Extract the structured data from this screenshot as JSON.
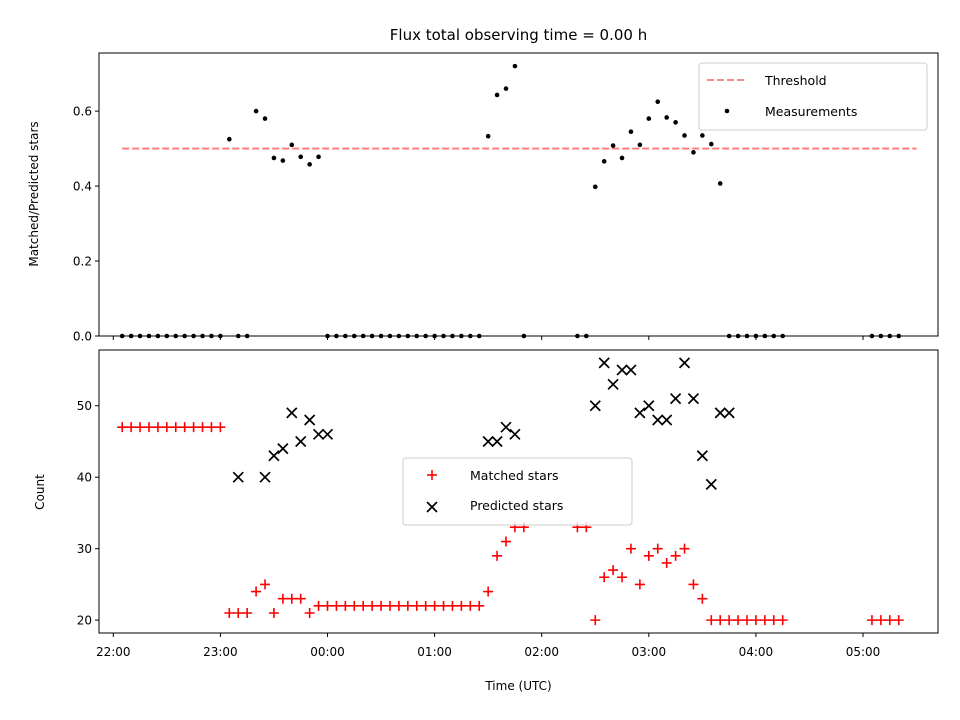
{
  "chart_data": [
    {
      "type": "scatter",
      "title": "Flux total observing time = 0.00 h",
      "ylabel": "Matched/Predicted stars",
      "xlabel": "",
      "ylim": [
        0,
        0.755
      ],
      "yticks": [
        "0.0",
        "0.2",
        "0.4",
        "0.6"
      ],
      "grid": false,
      "legend_position": "top-right",
      "series": [
        {
          "name": "Threshold",
          "style": "dashed-line",
          "color": "#ff7777",
          "x": [
            "22:05",
            "05:30"
          ],
          "y": [
            0.5,
            0.5
          ]
        },
        {
          "name": "Measurements",
          "style": "dot",
          "color": "#000000",
          "x": [
            "22:05",
            "22:10",
            "22:15",
            "22:20",
            "22:25",
            "22:30",
            "22:35",
            "22:40",
            "22:45",
            "22:50",
            "22:55",
            "23:00",
            "23:05",
            "23:10",
            "23:15",
            "23:20",
            "23:25",
            "23:30",
            "23:35",
            "23:40",
            "23:45",
            "23:50",
            "23:55",
            "00:00",
            "00:05",
            "00:10",
            "00:15",
            "00:20",
            "00:25",
            "00:30",
            "00:35",
            "00:40",
            "00:45",
            "00:50",
            "00:55",
            "01:00",
            "01:05",
            "01:10",
            "01:15",
            "01:20",
            "01:25",
            "01:30",
            "01:35",
            "01:40",
            "01:45",
            "01:50",
            "02:20",
            "02:25",
            "02:30",
            "02:35",
            "02:40",
            "02:45",
            "02:50",
            "02:55",
            "03:00",
            "03:05",
            "03:10",
            "03:15",
            "03:20",
            "03:25",
            "03:30",
            "03:35",
            "03:40",
            "03:45",
            "03:50",
            "03:55",
            "04:00",
            "04:05",
            "04:10",
            "04:15",
            "05:05",
            "05:10",
            "05:15",
            "05:20"
          ],
          "y": [
            0,
            0,
            0,
            0,
            0,
            0,
            0,
            0,
            0,
            0,
            0,
            0,
            0.525,
            0,
            0,
            0.6,
            0.58,
            0.475,
            0.468,
            0.51,
            0.478,
            0.458,
            0.478,
            0,
            0,
            0,
            0,
            0,
            0,
            0,
            0,
            0,
            0,
            0,
            0,
            0,
            0,
            0,
            0,
            0,
            0,
            0.533,
            0.643,
            0.66,
            0.72,
            0,
            0,
            0,
            0.398,
            0.466,
            0.508,
            0.475,
            0.545,
            0.51,
            0.58,
            0.625,
            0.583,
            0.57,
            0.535,
            0.49,
            0.535,
            0.512,
            0.407,
            0,
            0,
            0,
            0,
            0,
            0,
            0,
            0,
            0,
            0,
            0
          ]
        }
      ]
    },
    {
      "type": "scatter",
      "title": "",
      "ylabel": "Count",
      "xlabel": "Time (UTC)",
      "ylim": [
        18.2,
        57.8
      ],
      "yticks": [
        "20",
        "30",
        "40",
        "50"
      ],
      "xlim": [
        "21:52",
        "05:42"
      ],
      "xticks": [
        "22:00",
        "23:00",
        "00:00",
        "01:00",
        "02:00",
        "03:00",
        "04:00",
        "05:00"
      ],
      "grid": false,
      "legend_position": "center",
      "series": [
        {
          "name": "Matched stars",
          "marker": "plus",
          "color": "#ff0000",
          "x": [
            "22:05",
            "22:10",
            "22:15",
            "22:20",
            "22:25",
            "22:30",
            "22:35",
            "22:40",
            "22:45",
            "22:50",
            "22:55",
            "23:00",
            "23:05",
            "23:10",
            "23:15",
            "23:20",
            "23:25",
            "23:30",
            "23:35",
            "23:40",
            "23:45",
            "23:50",
            "23:55",
            "00:00",
            "00:05",
            "00:10",
            "00:15",
            "00:20",
            "00:25",
            "00:30",
            "00:35",
            "00:40",
            "00:45",
            "00:50",
            "00:55",
            "01:00",
            "01:05",
            "01:10",
            "01:15",
            "01:20",
            "01:25",
            "01:30",
            "01:35",
            "01:40",
            "01:45",
            "01:50",
            "02:20",
            "02:25",
            "02:30",
            "02:35",
            "02:40",
            "02:45",
            "02:50",
            "02:55",
            "03:00",
            "03:05",
            "03:10",
            "03:15",
            "03:20",
            "03:25",
            "03:30",
            "03:35",
            "03:40",
            "03:45",
            "03:50",
            "03:55",
            "04:00",
            "04:05",
            "04:10",
            "04:15",
            "05:05",
            "05:10",
            "05:15",
            "05:20"
          ],
          "y": [
            47,
            47,
            47,
            47,
            47,
            47,
            47,
            47,
            47,
            47,
            47,
            47,
            21,
            21,
            21,
            24,
            25,
            21,
            23,
            23,
            23,
            21,
            22,
            22,
            22,
            22,
            22,
            22,
            22,
            22,
            22,
            22,
            22,
            22,
            22,
            22,
            22,
            22,
            22,
            22,
            22,
            24,
            29,
            31,
            33,
            33,
            33,
            33,
            20,
            26,
            27,
            26,
            30,
            25,
            29,
            30,
            28,
            29,
            30,
            25,
            23,
            20,
            20,
            20,
            20,
            20,
            20,
            20,
            20,
            20,
            20,
            20,
            20,
            20
          ]
        },
        {
          "name": "Predicted stars",
          "marker": "x",
          "color": "#000000",
          "x": [
            "23:10",
            "23:25",
            "23:30",
            "23:35",
            "23:40",
            "23:45",
            "23:50",
            "23:55",
            "00:00",
            "01:30",
            "01:35",
            "01:40",
            "01:45",
            "02:30",
            "02:35",
            "02:40",
            "02:45",
            "02:50",
            "02:55",
            "03:00",
            "03:05",
            "03:10",
            "03:15",
            "03:20",
            "03:25",
            "03:30",
            "03:35",
            "03:40",
            "03:45"
          ],
          "y": [
            40,
            40,
            43,
            44,
            49,
            45,
            48,
            46,
            46,
            45,
            45,
            47,
            46,
            50,
            56,
            53,
            55,
            55,
            49,
            50,
            48,
            48,
            51,
            56,
            51,
            43,
            39,
            49,
            49
          ]
        }
      ]
    }
  ]
}
